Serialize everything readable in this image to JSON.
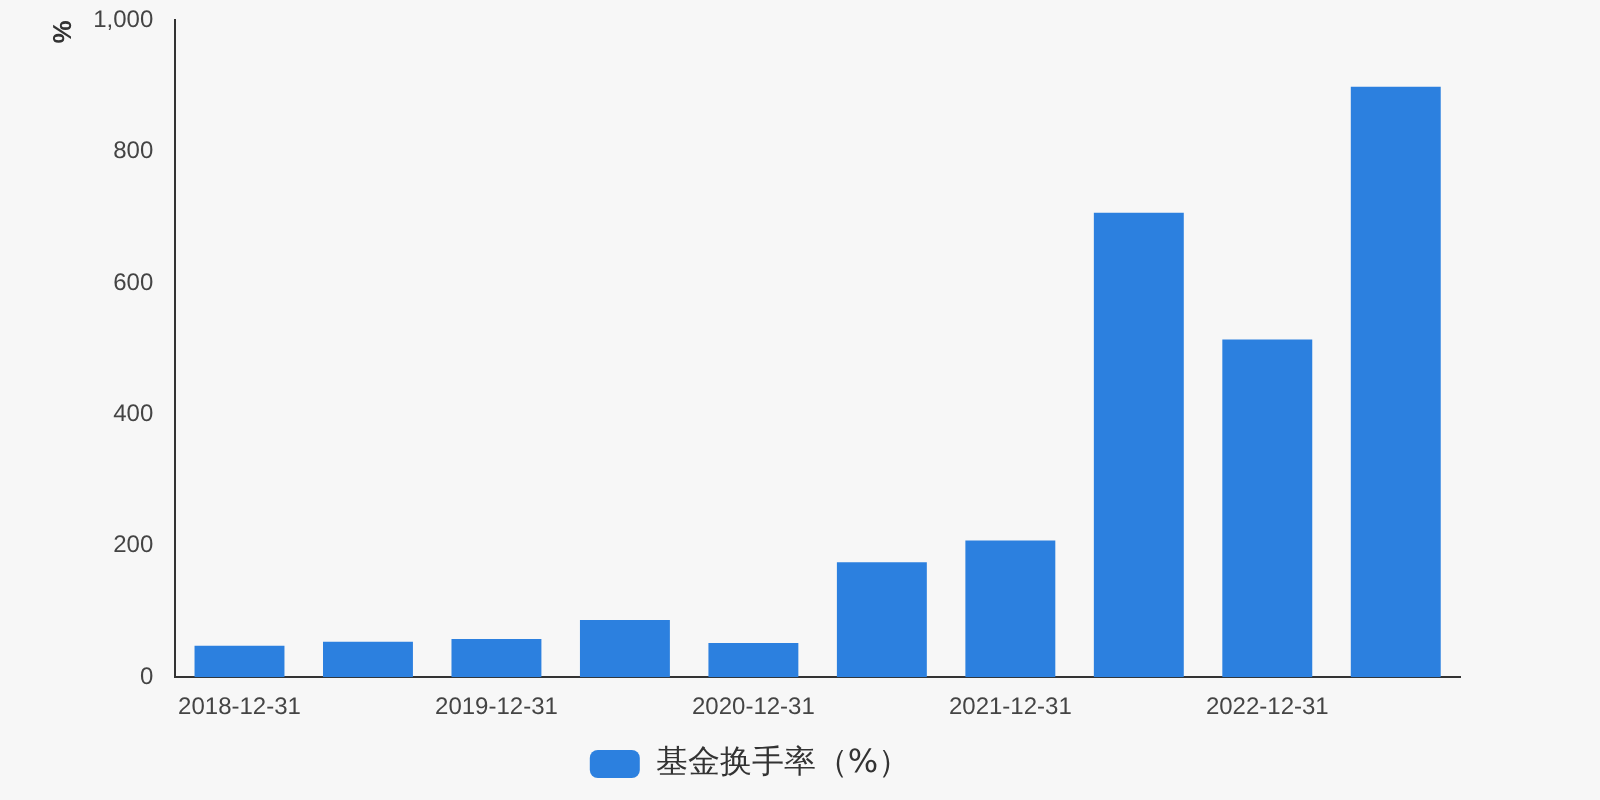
{
  "chart_data": {
    "type": "bar",
    "ylabel": "%",
    "categories": [
      "2018-12-31",
      null,
      "2019-12-31",
      null,
      "2020-12-31",
      null,
      "2021-12-31",
      null,
      "2022-12-31",
      null
    ],
    "series": [
      {
        "name": "基金换手率（%）",
        "color": "#2c80df",
        "values": [
          48,
          54,
          58,
          87,
          52,
          175,
          208,
          707,
          514,
          899
        ]
      }
    ],
    "ylim": [
      0,
      1000
    ],
    "yticks": [
      0,
      200,
      400,
      600,
      800,
      {
        "value": 1000,
        "label": "1,000"
      }
    ],
    "grid": false,
    "legend": "bottom"
  }
}
